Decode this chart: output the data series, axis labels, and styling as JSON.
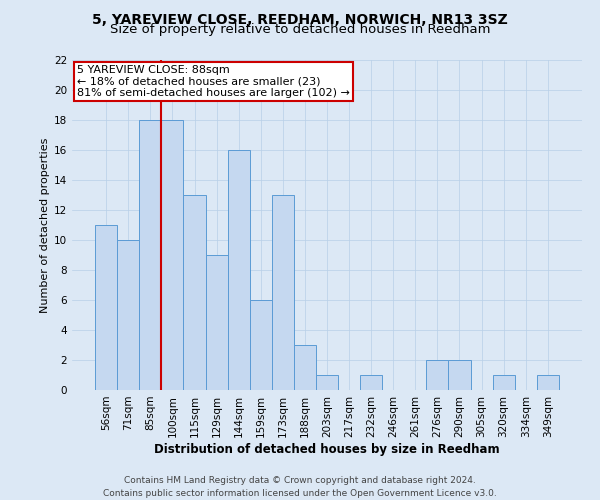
{
  "title": "5, YAREVIEW CLOSE, REEDHAM, NORWICH, NR13 3SZ",
  "subtitle": "Size of property relative to detached houses in Reedham",
  "xlabel": "Distribution of detached houses by size in Reedham",
  "ylabel": "Number of detached properties",
  "footer_line1": "Contains HM Land Registry data © Crown copyright and database right 2024.",
  "footer_line2": "Contains public sector information licensed under the Open Government Licence v3.0.",
  "bin_labels": [
    "56sqm",
    "71sqm",
    "85sqm",
    "100sqm",
    "115sqm",
    "129sqm",
    "144sqm",
    "159sqm",
    "173sqm",
    "188sqm",
    "203sqm",
    "217sqm",
    "232sqm",
    "246sqm",
    "261sqm",
    "276sqm",
    "290sqm",
    "305sqm",
    "320sqm",
    "334sqm",
    "349sqm"
  ],
  "bar_values": [
    11,
    10,
    18,
    18,
    13,
    9,
    16,
    6,
    13,
    3,
    1,
    0,
    1,
    0,
    0,
    2,
    2,
    0,
    1,
    0,
    1
  ],
  "bar_color": "#c5d8f0",
  "bar_edge_color": "#5b9bd5",
  "annotation_box_text": "5 YAREVIEW CLOSE: 88sqm\n← 18% of detached houses are smaller (23)\n81% of semi-detached houses are larger (102) →",
  "annotation_box_color": "#ffffff",
  "annotation_box_edge_color": "#cc0000",
  "vline_color": "#cc0000",
  "vline_x_index": 2,
  "ylim": [
    0,
    22
  ],
  "yticks": [
    0,
    2,
    4,
    6,
    8,
    10,
    12,
    14,
    16,
    18,
    20,
    22
  ],
  "grid_color": "#b8cfe8",
  "background_color": "#dce8f5",
  "title_fontsize": 10,
  "subtitle_fontsize": 9.5,
  "xlabel_fontsize": 8.5,
  "ylabel_fontsize": 8,
  "tick_fontsize": 7.5,
  "footer_fontsize": 6.5,
  "annotation_fontsize": 8
}
